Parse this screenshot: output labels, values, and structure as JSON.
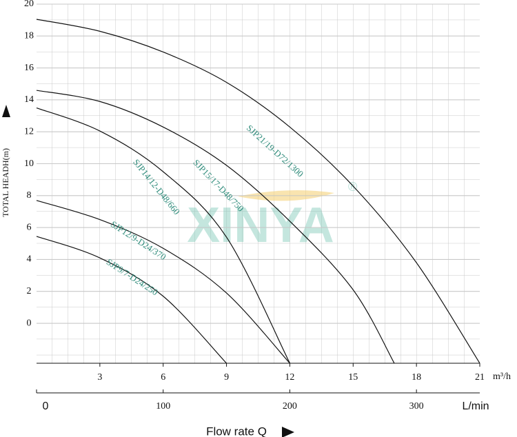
{
  "chart_data": {
    "type": "line",
    "y_label": "TOTAL HEADH(m)",
    "x_unit": "m³/h",
    "x2_unit": "L/min",
    "x2_title": "Flow rate Q",
    "watermark": "XINYA",
    "watermark_mark": "®",
    "xlim": [
      0,
      21
    ],
    "xticks": [
      3,
      6,
      9,
      12,
      15,
      18,
      21
    ],
    "ylim": [
      -2.5,
      20
    ],
    "yticks": [
      0,
      2,
      4,
      6,
      8,
      10,
      12,
      14,
      16,
      18,
      20
    ],
    "x2lim": [
      0,
      350
    ],
    "x2ticks": [
      0,
      100,
      200,
      300
    ],
    "grid": true,
    "series": [
      {
        "name": "SJP21/19-D72/1300",
        "color": "#111111",
        "x": [
          0,
          3,
          6,
          9,
          12,
          15,
          18,
          21
        ],
        "values": [
          19.05,
          18.3,
          17.0,
          15.1,
          12.3,
          8.6,
          3.8,
          -2.5
        ]
      },
      {
        "name": "SJP15/17-D48/750",
        "color": "#111111",
        "x": [
          0,
          3,
          6,
          9,
          12,
          15,
          16.95
        ],
        "values": [
          14.6,
          13.9,
          12.3,
          9.9,
          6.4,
          2.1,
          -2.5
        ]
      },
      {
        "name": "SJP14/12-D48/660",
        "color": "#111111",
        "x": [
          0,
          3,
          6,
          9,
          12
        ],
        "values": [
          13.5,
          12.05,
          9.5,
          5.4,
          -2.5
        ]
      },
      {
        "name": "SJP12/9-D24/370",
        "color": "#111111",
        "x": [
          0,
          3,
          6,
          9,
          12
        ],
        "values": [
          7.7,
          6.5,
          4.7,
          1.9,
          -2.5
        ]
      },
      {
        "name": "SJP9/7-D24/250",
        "color": "#111111",
        "x": [
          0,
          3,
          6,
          9
        ],
        "values": [
          5.45,
          4.1,
          1.7,
          -2.5
        ]
      }
    ]
  }
}
